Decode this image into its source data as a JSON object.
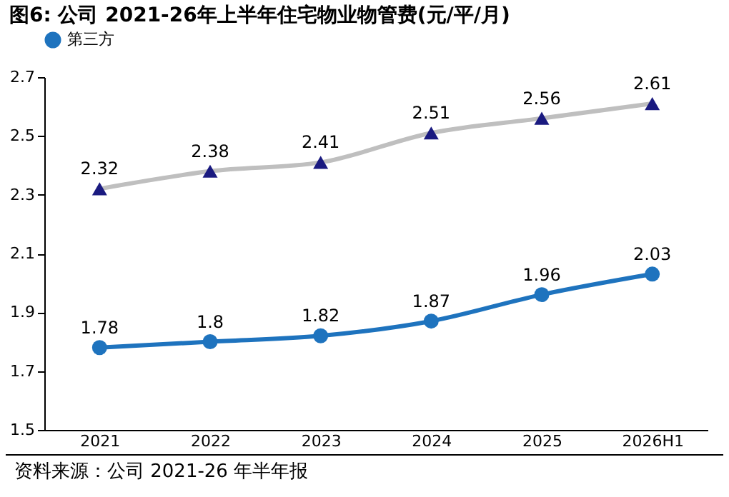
{
  "chart_data": {
    "type": "line",
    "title": "图6:  公司 2021-26年上半年住宅物业物管费(元/平/月)",
    "categories": [
      "2021",
      "2022",
      "2023",
      "2024",
      "2025",
      "2026H1"
    ],
    "series": [
      {
        "color": "#bfbfbf",
        "marker": "triangle",
        "values": [
          2.32,
          2.38,
          2.41,
          2.51,
          2.56,
          2.61
        ]
      },
      {
        "name": "第三方",
        "color": "#1e73be",
        "marker": "circle",
        "values": [
          1.78,
          1.8,
          1.82,
          1.87,
          1.96,
          2.03
        ]
      }
    ],
    "ylim": [
      1.5,
      2.7
    ],
    "yticks": [
      1.5,
      1.7,
      1.9,
      2.1,
      2.3,
      2.5,
      2.7
    ],
    "data_labels": true,
    "legend": "top",
    "grid": false,
    "annotations": [
      "资料来源：公司 2021-26 年半年报"
    ]
  }
}
